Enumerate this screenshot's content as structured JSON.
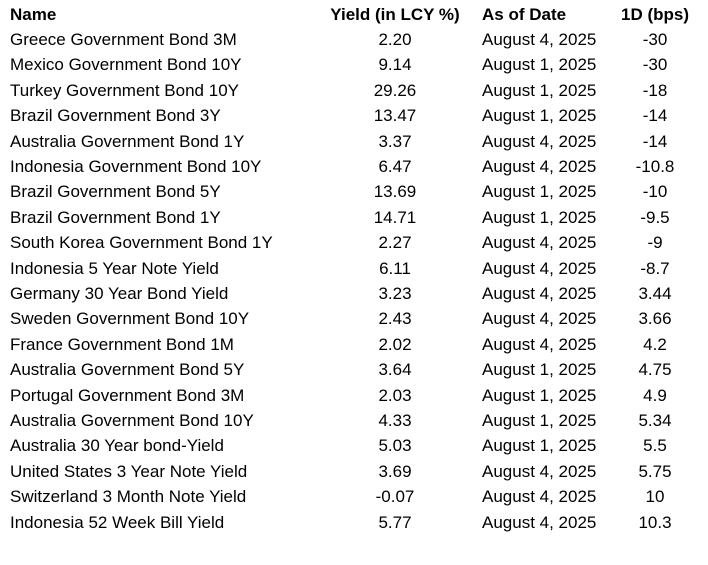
{
  "table": {
    "headers": {
      "name": "Name",
      "yield": "Yield (in LCY %)",
      "as_of_date": "As of Date",
      "change_1d_bps": "1D (bps)"
    },
    "rows": [
      {
        "name": "Greece Government Bond 3M",
        "yield": "2.20",
        "as_of_date": "August 4, 2025",
        "change_1d_bps": "-30"
      },
      {
        "name": "Mexico Government Bond 10Y",
        "yield": "9.14",
        "as_of_date": "August 1, 2025",
        "change_1d_bps": "-30"
      },
      {
        "name": "Turkey Government Bond 10Y",
        "yield": "29.26",
        "as_of_date": "August 1, 2025",
        "change_1d_bps": "-18"
      },
      {
        "name": "Brazil Government Bond 3Y",
        "yield": "13.47",
        "as_of_date": "August 1, 2025",
        "change_1d_bps": "-14"
      },
      {
        "name": "Australia Government Bond 1Y",
        "yield": "3.37",
        "as_of_date": "August 4, 2025",
        "change_1d_bps": "-14"
      },
      {
        "name": "Indonesia Government Bond 10Y",
        "yield": "6.47",
        "as_of_date": "August 4, 2025",
        "change_1d_bps": "-10.8"
      },
      {
        "name": "Brazil Government Bond 5Y",
        "yield": "13.69",
        "as_of_date": "August 1, 2025",
        "change_1d_bps": "-10"
      },
      {
        "name": "Brazil Government Bond 1Y",
        "yield": "14.71",
        "as_of_date": "August 1, 2025",
        "change_1d_bps": "-9.5"
      },
      {
        "name": "South Korea Government Bond 1Y",
        "yield": "2.27",
        "as_of_date": "August 4, 2025",
        "change_1d_bps": "-9"
      },
      {
        "name": "Indonesia 5 Year Note Yield",
        "yield": "6.11",
        "as_of_date": "August 4, 2025",
        "change_1d_bps": "-8.7"
      },
      {
        "name": "Germany 30 Year Bond Yield",
        "yield": "3.23",
        "as_of_date": "August 4, 2025",
        "change_1d_bps": "3.44"
      },
      {
        "name": "Sweden Government Bond 10Y",
        "yield": "2.43",
        "as_of_date": "August 4, 2025",
        "change_1d_bps": "3.66"
      },
      {
        "name": "France Government Bond 1M",
        "yield": "2.02",
        "as_of_date": "August 4, 2025",
        "change_1d_bps": "4.2"
      },
      {
        "name": "Australia Government Bond 5Y",
        "yield": "3.64",
        "as_of_date": "August 1, 2025",
        "change_1d_bps": "4.75"
      },
      {
        "name": "Portugal Government Bond 3M",
        "yield": "2.03",
        "as_of_date": "August 1, 2025",
        "change_1d_bps": "4.9"
      },
      {
        "name": "Australia Government Bond 10Y",
        "yield": "4.33",
        "as_of_date": "August 1, 2025",
        "change_1d_bps": "5.34"
      },
      {
        "name": "Australia 30 Year bond-Yield",
        "yield": "5.03",
        "as_of_date": "August 1, 2025",
        "change_1d_bps": "5.5"
      },
      {
        "name": "United States 3 Year Note Yield",
        "yield": "3.69",
        "as_of_date": "August 4, 2025",
        "change_1d_bps": "5.75"
      },
      {
        "name": "Switzerland 3 Month Note Yield",
        "yield": "-0.07",
        "as_of_date": "August 4, 2025",
        "change_1d_bps": "10"
      },
      {
        "name": "Indonesia 52 Week Bill Yield",
        "yield": "5.77",
        "as_of_date": "August 4, 2025",
        "change_1d_bps": "10.3"
      }
    ]
  }
}
